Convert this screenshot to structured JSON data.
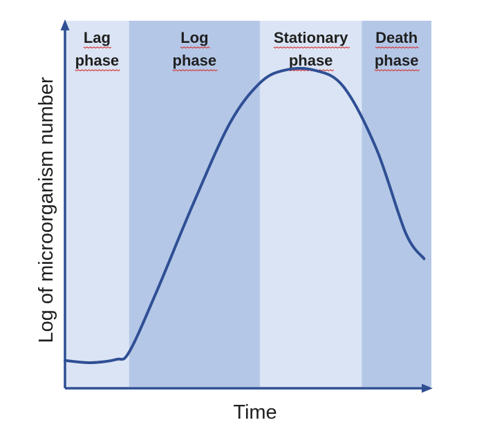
{
  "chart_data": {
    "type": "line",
    "title": "",
    "xlabel": "Time",
    "ylabel": "Log of microorganism number",
    "phases": [
      {
        "line1": "Lag",
        "line2": "phase",
        "x_start": 0,
        "x_end": 0.175,
        "color": "#dbe4f4"
      },
      {
        "line1": "Log",
        "line2": "phase",
        "x_start": 0.175,
        "x_end": 0.532,
        "color": "#b4c7e7"
      },
      {
        "line1": "Stationary",
        "line2": "phase",
        "x_start": 0.532,
        "x_end": 0.81,
        "color": "#dbe4f4"
      },
      {
        "line1": "Death",
        "line2": "phase",
        "x_start": 0.81,
        "x_end": 1.0,
        "color": "#b4c7e7"
      }
    ],
    "series": [
      {
        "x": [
          0.0,
          0.07,
          0.14,
          0.175,
          0.25,
          0.35,
          0.45,
          0.532,
          0.6,
          0.68,
          0.76,
          0.85,
          0.93,
          0.98
        ],
        "y": [
          0.072,
          0.066,
          0.075,
          0.095,
          0.26,
          0.5,
          0.72,
          0.83,
          0.865,
          0.865,
          0.82,
          0.65,
          0.42,
          0.35
        ]
      }
    ],
    "xlim": [
      0,
      1
    ],
    "ylim": [
      0,
      1
    ],
    "grid": false,
    "colors": {
      "axis": "#2f4f94",
      "curve": "#2f4f94"
    }
  }
}
